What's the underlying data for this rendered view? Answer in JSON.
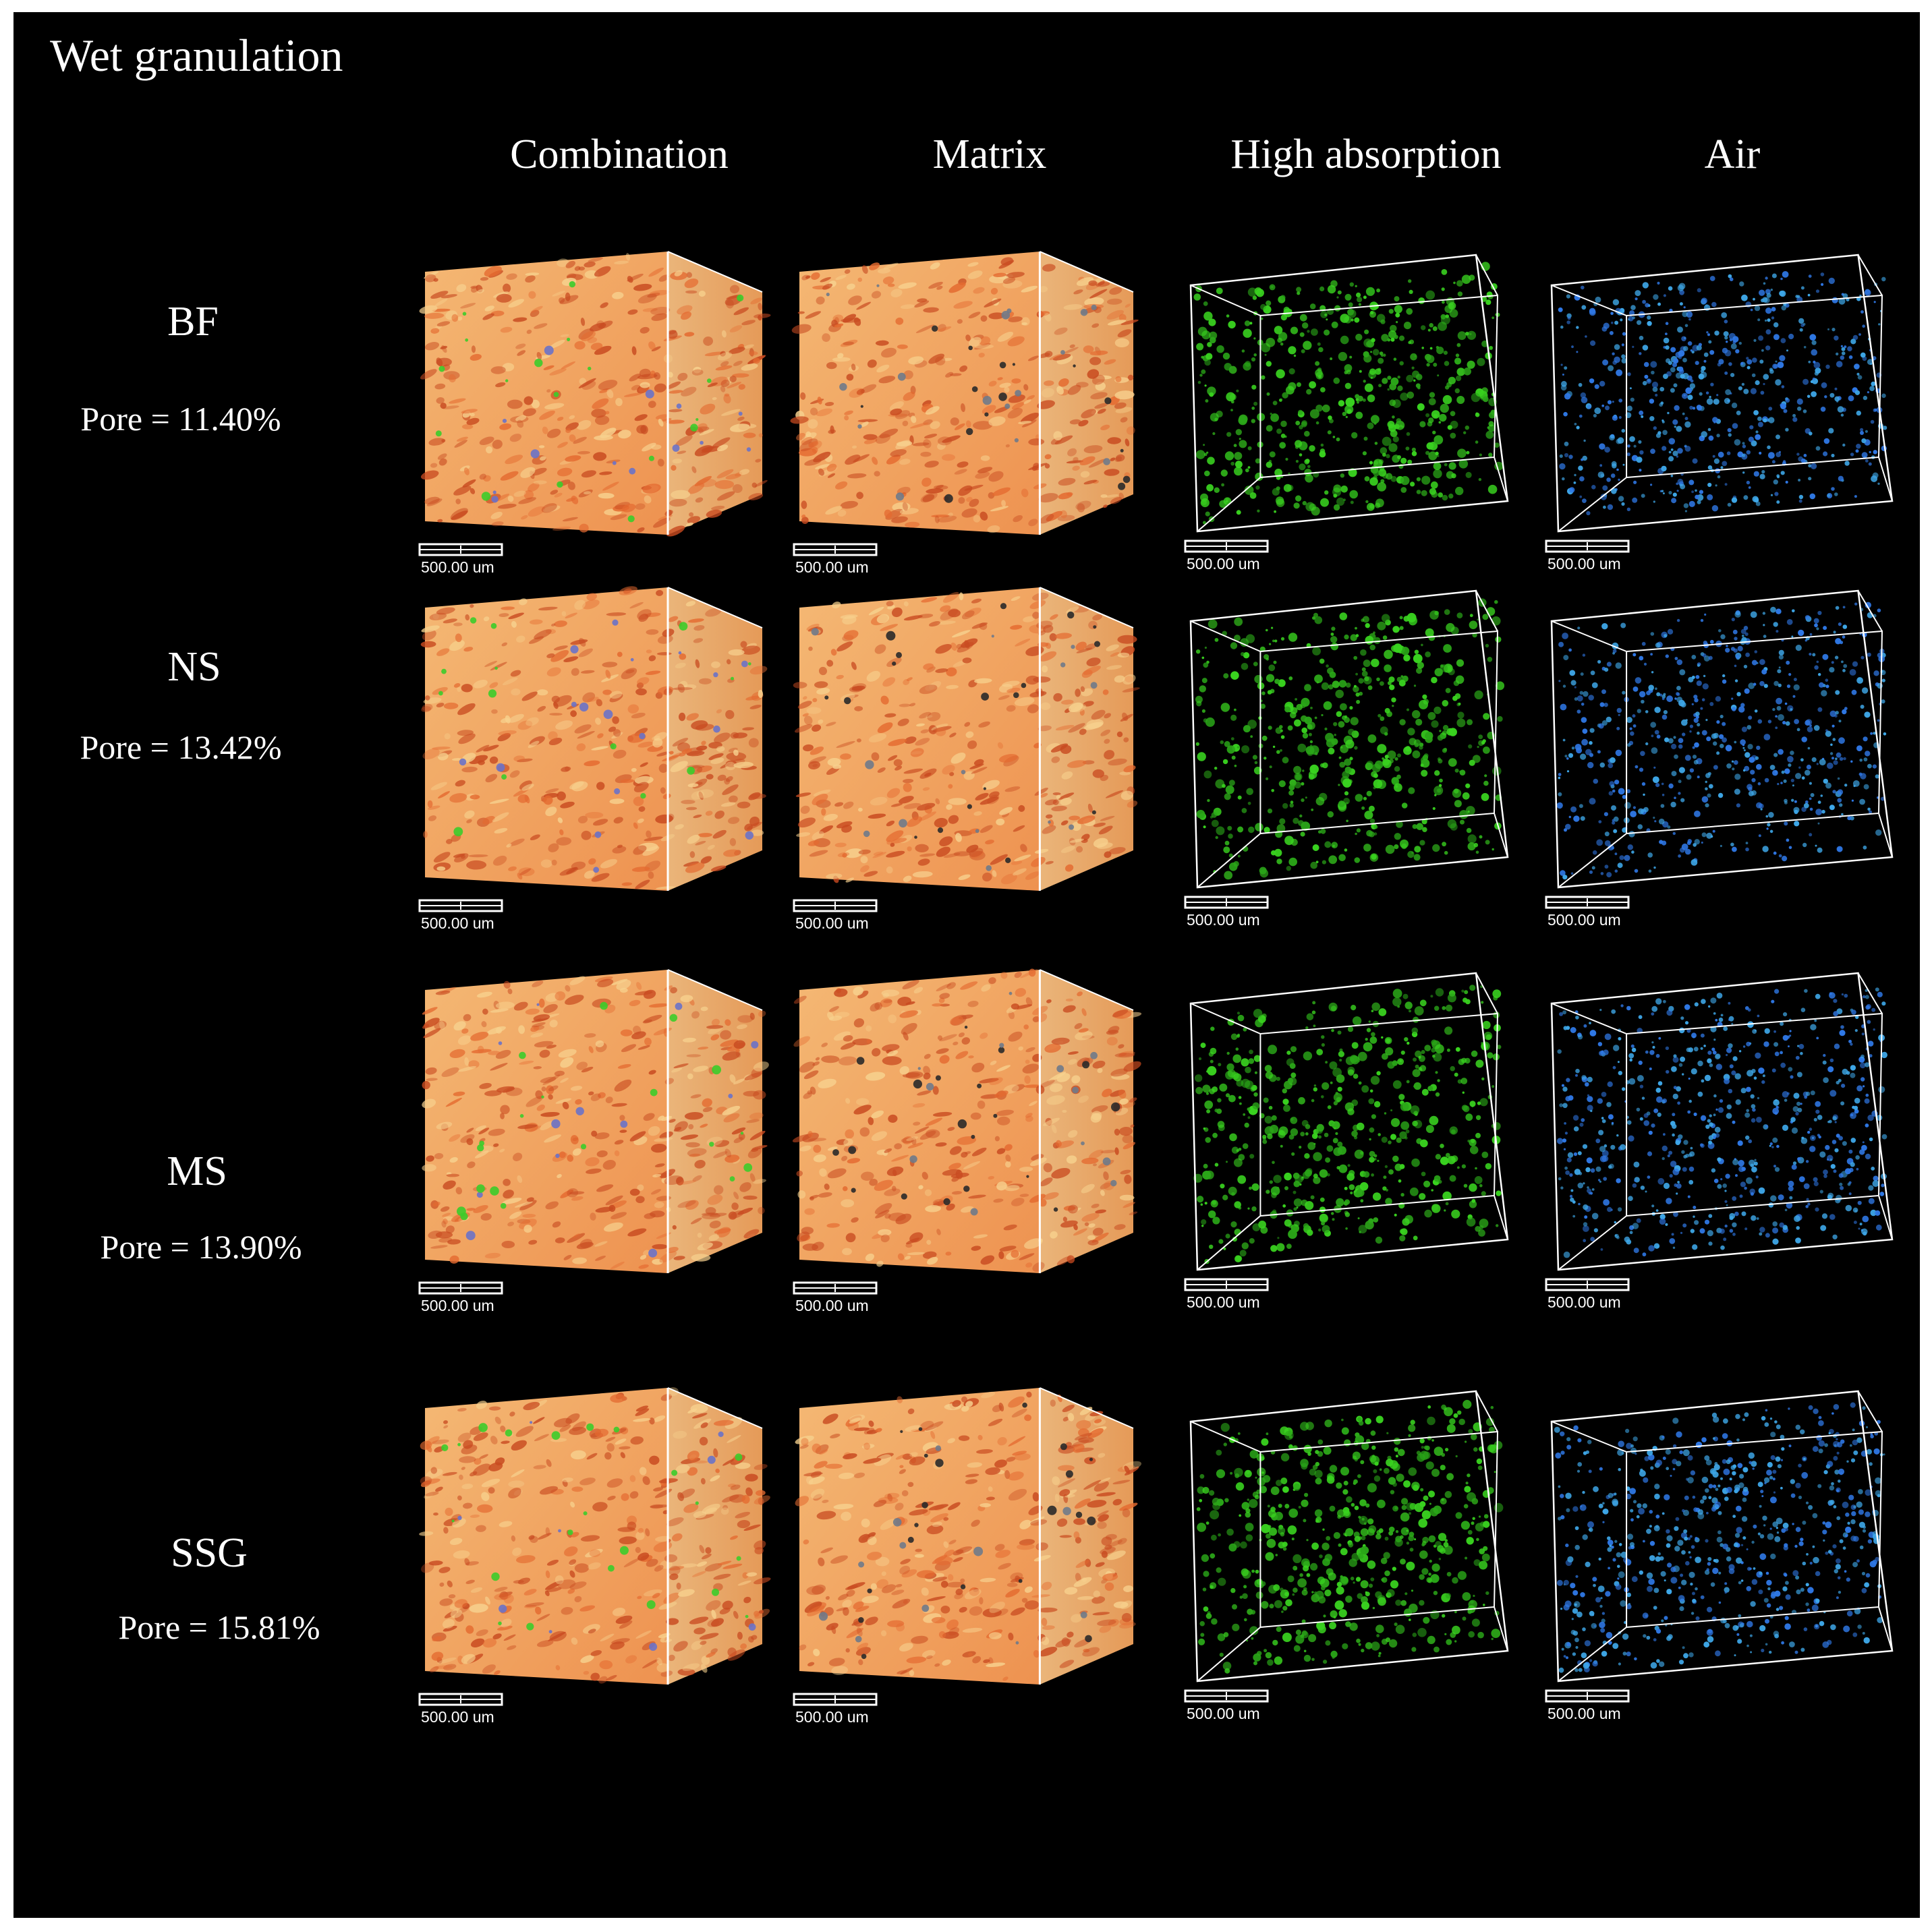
{
  "title": "Wet granulation",
  "columns": [
    "Combination",
    "Matrix",
    "High absorption",
    "Air"
  ],
  "rows": [
    {
      "name": "BF",
      "pore_label": "Pore = 11.40%"
    },
    {
      "name": "NS",
      "pore_label": "Pore = 13.42%"
    },
    {
      "name": "MS",
      "pore_label": "Pore = 13.90%"
    },
    {
      "name": "SSG",
      "pore_label": "Pore = 15.81%"
    }
  ],
  "scale_bar_label": "500.00 um",
  "colors": {
    "background": "#000000",
    "matrix_front": "#f0a860",
    "matrix_side": "#e8b070",
    "matrix_dark": "#c84a20",
    "high_absorption": "#39d21f",
    "air_light": "#3ea7e8",
    "air_dark": "#2f78e6",
    "wire": "#ffffff"
  }
}
